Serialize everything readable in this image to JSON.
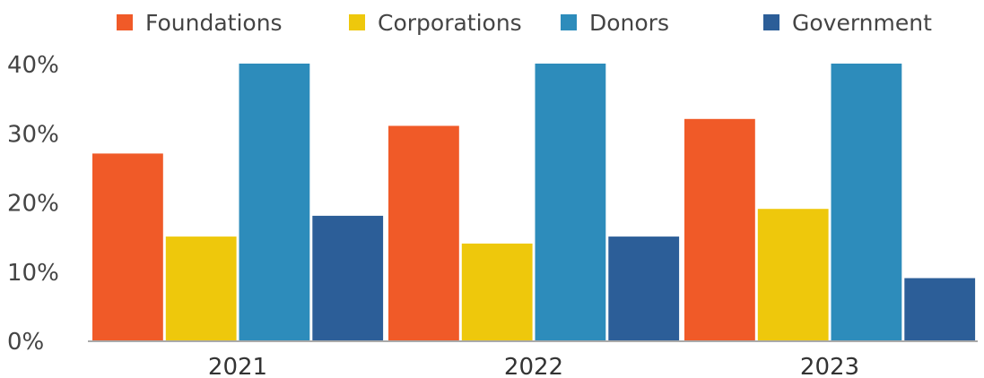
{
  "chart_data": {
    "type": "bar",
    "title": "",
    "xlabel": "",
    "ylabel": "",
    "categories": [
      "2021",
      "2022",
      "2023"
    ],
    "series": [
      {
        "name": "Foundations",
        "color": "#f05a28",
        "values": [
          27,
          31,
          32
        ]
      },
      {
        "name": "Corporations",
        "color": "#eec80c",
        "values": [
          15,
          14,
          19
        ]
      },
      {
        "name": "Donors",
        "color": "#2d8cbb",
        "values": [
          40,
          40,
          40
        ]
      },
      {
        "name": "Government",
        "color": "#2c5e98",
        "values": [
          18,
          15,
          9
        ]
      }
    ],
    "ylim": [
      0,
      40
    ],
    "yticks": [
      0,
      10,
      20,
      30,
      40
    ],
    "ytick_labels": [
      "0%",
      "10%",
      "20%",
      "30%",
      "40%"
    ],
    "grid": false,
    "legend_position": "top",
    "axis_color": "#aaaaaa"
  }
}
